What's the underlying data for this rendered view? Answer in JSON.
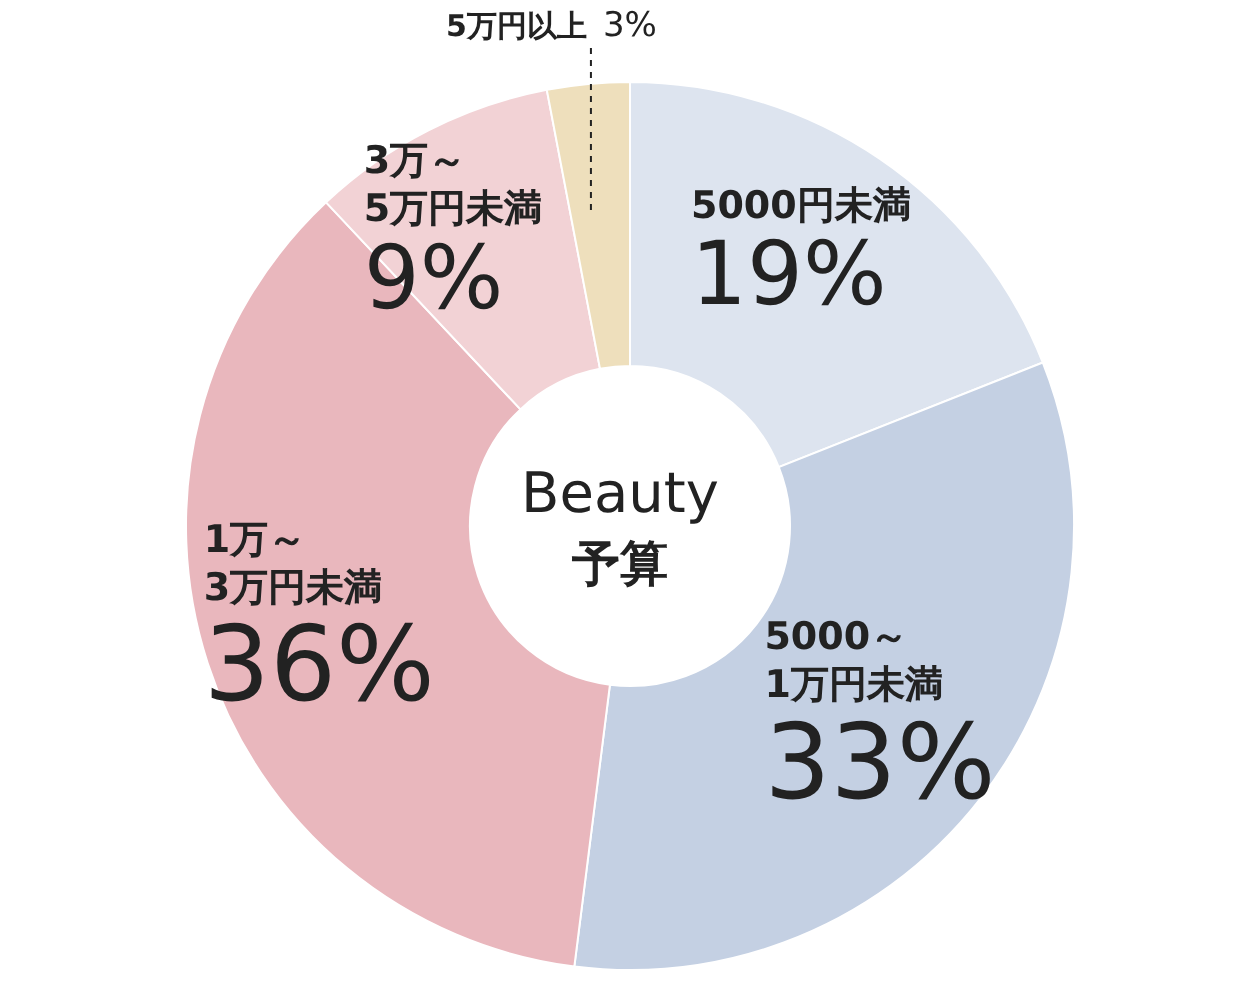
{
  "chart_data": {
    "type": "donut",
    "title": "Beauty",
    "subtitle": "予算",
    "categories": [
      "5000円未満",
      "5000～1万円未満",
      "1万～3万円未満",
      "3万～5万円未満",
      "5万円以上"
    ],
    "values": [
      19,
      33,
      36,
      9,
      3
    ],
    "colors": [
      "#dde4ef",
      "#c4d0e3",
      "#e9b7bd",
      "#f2d2d5",
      "#eedfbc"
    ],
    "value_labels": [
      "19%",
      "33%",
      "36%",
      "9%",
      "3%"
    ]
  }
}
